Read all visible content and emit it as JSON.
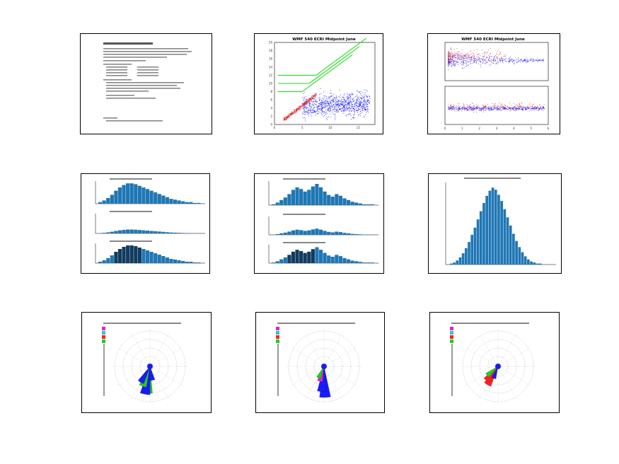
{
  "thumbnails": [
    {
      "kind": "text-summary"
    },
    {
      "kind": "scatter",
      "title": "WMF 540 ECRI Midpoint June"
    },
    {
      "kind": "scatter-dual",
      "title": "WMF 540 ECRI Midpoint June"
    },
    {
      "kind": "histogram-triple"
    },
    {
      "kind": "histogram-triple"
    },
    {
      "kind": "histogram-single"
    },
    {
      "kind": "rose"
    },
    {
      "kind": "rose"
    },
    {
      "kind": "rose"
    }
  ],
  "colors": {
    "scatter_a": "#e02020",
    "scatter_b": "#1a1aff",
    "lines": "#22dd22",
    "bars": "#1f77b4",
    "rose_blue": "#1a1aff",
    "rose_green": "#22cc22",
    "rose_red": "#ff2020",
    "rose_magenta": "#dd22dd",
    "rose_cyan": "#22cccc"
  },
  "chart_data": [
    {
      "type": "table",
      "title": ""
    },
    {
      "type": "scatter",
      "title": "WMF 540 ECRI Midpoint June",
      "x_ticks": [
        "0",
        "5",
        "10",
        "15"
      ],
      "y_ticks": [
        "0",
        "2",
        "4",
        "6",
        "8",
        "10",
        "12",
        "14",
        "16",
        "18",
        "20"
      ],
      "xlim": [
        0,
        18
      ],
      "ylim": [
        0,
        20
      ],
      "reference_levels": [
        12,
        10,
        8
      ],
      "diagonal_slope": 1.0
    },
    {
      "type": "scatter",
      "title": "WMF 540 ECRI Midpoint June",
      "x_ticks": [
        "0",
        "1",
        "2",
        "3",
        "4",
        "5",
        "6"
      ],
      "xlim": [
        0,
        6
      ]
    },
    {
      "type": "bar",
      "subplots": 3,
      "values": [
        2,
        4,
        7,
        11,
        16,
        20,
        23,
        25,
        25,
        24,
        22,
        20,
        18,
        16,
        14,
        12,
        10,
        8,
        6,
        5,
        4,
        3,
        2,
        2,
        1,
        1
      ]
    },
    {
      "type": "bar",
      "subplots": 3,
      "values": [
        1,
        3,
        6,
        9,
        13,
        18,
        21,
        19,
        16,
        18,
        22,
        25,
        21,
        16,
        12,
        10,
        13,
        11,
        8,
        6,
        4,
        3,
        2,
        1,
        1,
        1
      ]
    },
    {
      "type": "bar",
      "values": [
        1,
        2,
        4,
        7,
        11,
        16,
        22,
        29,
        36,
        44,
        52,
        60,
        67,
        72,
        75,
        73,
        68,
        62,
        54,
        46,
        38,
        30,
        23,
        17,
        12,
        8,
        5,
        3,
        2,
        1,
        1
      ]
    },
    {
      "type": "rose"
    },
    {
      "type": "rose"
    },
    {
      "type": "rose"
    }
  ]
}
